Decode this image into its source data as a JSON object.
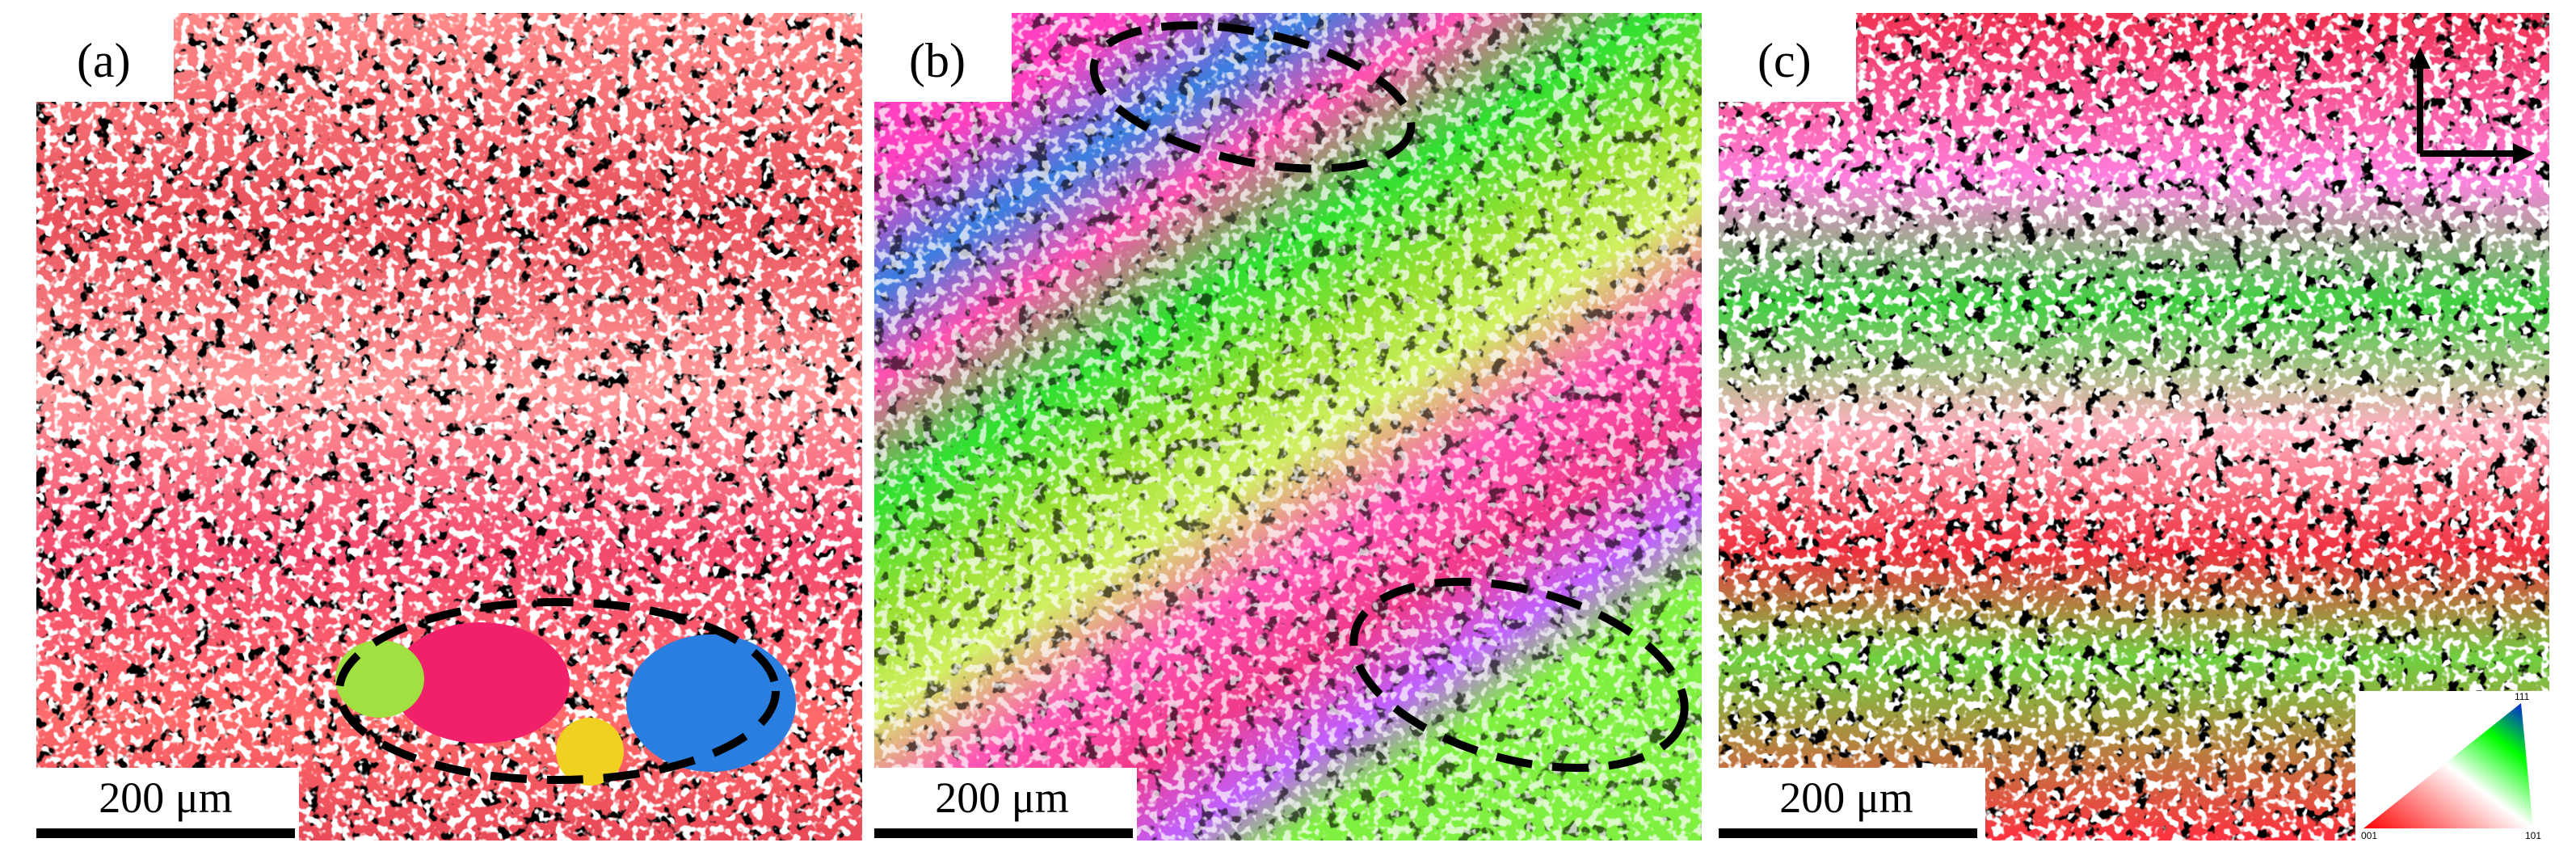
{
  "panels": [
    {
      "label": "(a)",
      "scale_bar": "200 μm"
    },
    {
      "label": "(b)",
      "scale_bar": "200 μm"
    },
    {
      "label": "(c)",
      "scale_bar": "200 μm"
    }
  ],
  "ipf_legend": {
    "corners": [
      "001",
      "101",
      "111"
    ]
  }
}
